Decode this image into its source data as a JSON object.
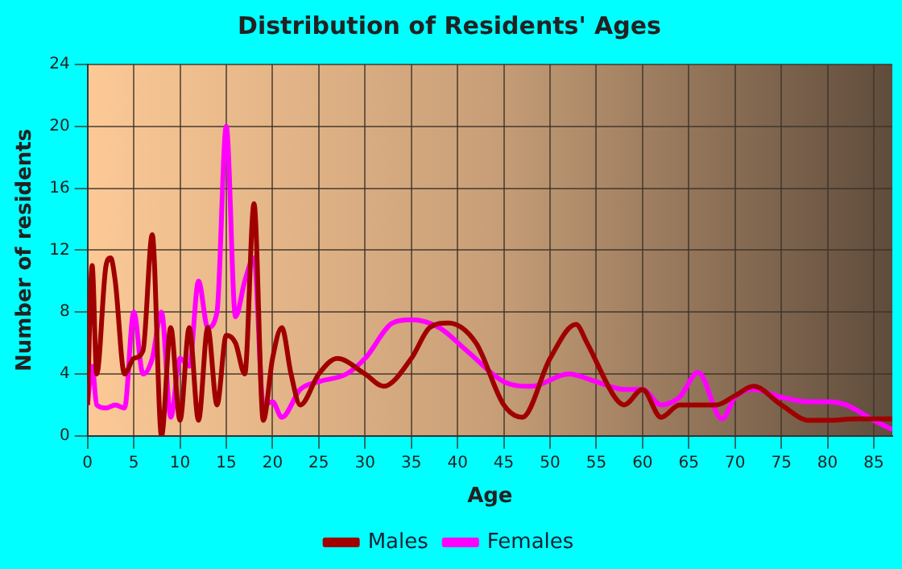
{
  "chart_data": {
    "type": "line",
    "title": "Distribution of Residents' Ages",
    "xlabel": "Age",
    "ylabel": "Number of residents",
    "xlim": [
      0,
      87
    ],
    "xticks": [
      0,
      5,
      10,
      15,
      20,
      25,
      30,
      35,
      40,
      45,
      50,
      55,
      60,
      65,
      70,
      75,
      80,
      85
    ],
    "ylim": [
      0,
      24
    ],
    "yticks": [
      0,
      4,
      8,
      12,
      16,
      20,
      24
    ],
    "grid": true,
    "legend": "bottom",
    "series": [
      {
        "name": "Males",
        "color": "#a00000",
        "x": [
          0,
          0.5,
          1,
          2,
          2.5,
          3,
          4,
          5,
          6,
          7,
          8,
          9,
          10,
          11,
          12,
          13,
          14,
          15,
          16,
          17,
          18,
          19,
          20,
          21,
          22,
          23,
          25,
          27,
          30,
          32,
          35,
          37,
          39,
          42,
          45,
          47,
          50,
          52.8,
          54,
          57,
          58,
          60,
          62,
          64,
          66,
          68,
          70,
          72,
          75,
          78,
          80,
          83,
          87
        ],
        "values": [
          2,
          11,
          4,
          11,
          11.5,
          10,
          4,
          5,
          5.5,
          13,
          0,
          7,
          1,
          7,
          1,
          7,
          2,
          6.5,
          6,
          4,
          15,
          1,
          5,
          7,
          4,
          2,
          4,
          5,
          4,
          3.2,
          5,
          7,
          7.3,
          6,
          2,
          1.2,
          5,
          7.2,
          6,
          2.5,
          2,
          3,
          1.2,
          2,
          2,
          2,
          2.6,
          3.2,
          2,
          1,
          1,
          1.1,
          1.1
        ]
      },
      {
        "name": "Females",
        "color": "#ff00ff",
        "x": [
          0,
          0.5,
          1,
          2,
          3,
          4,
          5,
          6,
          7,
          8,
          9,
          10,
          11,
          12,
          13,
          14,
          15,
          16,
          17,
          18,
          19,
          20,
          21,
          23,
          25,
          28,
          30,
          33,
          35,
          38,
          41,
          45,
          48,
          52,
          55,
          58,
          60,
          62,
          64,
          66,
          68.6,
          70,
          72,
          75,
          78,
          80,
          82,
          85,
          87
        ],
        "values": [
          2,
          4.5,
          2,
          1.8,
          2,
          1.8,
          8,
          4,
          5,
          8,
          1.2,
          5,
          4.5,
          10,
          7,
          8,
          20,
          7.7,
          10,
          11.5,
          2,
          2.2,
          1.2,
          3,
          3.5,
          4,
          5,
          7.3,
          7.5,
          7,
          5.5,
          3.5,
          3.2,
          4,
          3.5,
          3,
          3,
          2,
          2.5,
          4.1,
          1.1,
          2.5,
          3,
          2.5,
          2.2,
          2.2,
          2,
          1,
          0.4
        ]
      }
    ]
  }
}
